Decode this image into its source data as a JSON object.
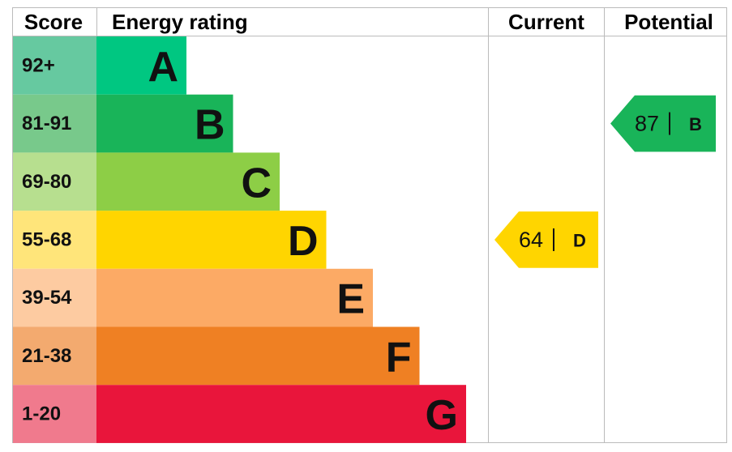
{
  "header": {
    "score": "Score",
    "rating": "Energy rating",
    "current": "Current",
    "potential": "Potential"
  },
  "bands": [
    {
      "score": "92+",
      "letter": "A",
      "color": "#00c781",
      "score_color": "#66c9a0"
    },
    {
      "score": "81-91",
      "letter": "B",
      "color": "#19b459",
      "score_color": "#78c98b"
    },
    {
      "score": "69-80",
      "letter": "C",
      "color": "#8dce46",
      "score_color": "#b7df8f"
    },
    {
      "score": "55-68",
      "letter": "D",
      "color": "#ffd500",
      "score_color": "#ffe57a"
    },
    {
      "score": "39-54",
      "letter": "E",
      "color": "#fcaa65",
      "score_color": "#fdcba1"
    },
    {
      "score": "21-38",
      "letter": "F",
      "color": "#ef8023",
      "score_color": "#f3aa6f"
    },
    {
      "score": "1-20",
      "letter": "G",
      "color": "#e9153b",
      "score_color": "#f07a8d"
    }
  ],
  "current": {
    "value": 64,
    "letter": "D"
  },
  "potential": {
    "value": 87,
    "letter": "B"
  }
}
